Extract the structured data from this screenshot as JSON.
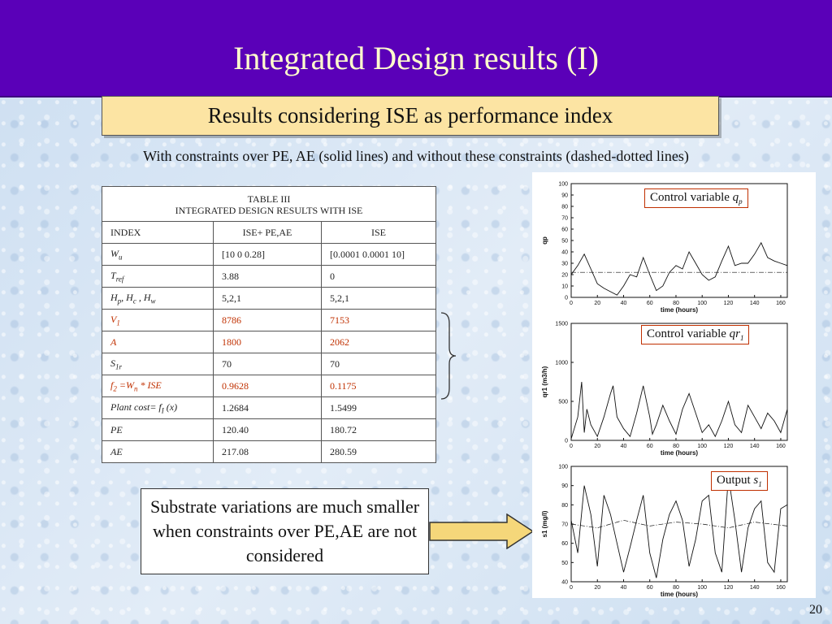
{
  "title": "Integrated Design results (I)",
  "subtitle": "Results considering ISE as performance index",
  "description": "With constraints over PE, AE (solid lines) and without these constraints (dashed-dotted lines)",
  "table": {
    "caption_line1": "TABLE III",
    "caption_line2": "INTEGRATED DESIGN RESULTS WITH ISE",
    "headers": [
      "INDEX",
      "ISE+ PE,AE",
      "ISE"
    ],
    "rows": [
      {
        "index_main": "W",
        "index_sub": "u",
        "index_rest": "",
        "c1": "[10  0  0.28]",
        "c2": "[0.0001  0.0001 10]"
      },
      {
        "index_main": "T",
        "index_sub": "ref",
        "index_rest": "",
        "c1": "3.88",
        "c2": "0"
      },
      {
        "index_main": "H",
        "index_sub": "p",
        "index_rest": ", H",
        "index_sub2": "c",
        "index_rest2": " , H",
        "index_sub3": "w",
        "c1": "5,2,1",
        "c2": "5,2,1"
      },
      {
        "index_main": "V",
        "index_sub": "1",
        "index_rest": "",
        "c1": "8786",
        "c2": "7153"
      },
      {
        "index_main": "A",
        "index_sub": "",
        "index_rest": "",
        "c1": "1800",
        "c2": "2062"
      },
      {
        "index_main": "S",
        "index_sub": "1r",
        "index_rest": "",
        "c1": "70",
        "c2": "70"
      },
      {
        "index_main": "f",
        "index_sub": "2",
        "index_rest": " =W",
        "index_sub2": "n",
        "index_rest2": " * ISE",
        "c1": "0.9628",
        "c2": "0.1175"
      },
      {
        "index_main": "Plant cost= f",
        "index_sub": "I",
        "index_rest": " (x)",
        "c1": "1.2684",
        "c2": "1.5499"
      },
      {
        "index_main": "PE",
        "index_sub": "",
        "index_rest": "",
        "c1": "120.40",
        "c2": "180.72"
      },
      {
        "index_main": "AE",
        "index_sub": "",
        "index_rest": "",
        "c1": "217.08",
        "c2": "280.59"
      }
    ]
  },
  "note": "Substrate variations are much smaller when constraints over PE,AE are not considered",
  "plots": {
    "qp": {
      "label": "Control variable ",
      "label_var": "q",
      "label_sub": "p",
      "ylabel": "qp",
      "xlabel": "time (hours)",
      "yticks": [
        "0",
        "10",
        "20",
        "30",
        "40",
        "50",
        "60",
        "70",
        "80",
        "90",
        "100"
      ]
    },
    "qr1": {
      "label": "Control variable ",
      "label_var": "qr",
      "label_sub": "1",
      "ylabel": "qr1 (m3/h)",
      "xlabel": "time (hours)",
      "yticks": [
        "0",
        "500",
        "1000",
        "1500"
      ]
    },
    "s1": {
      "label": "Output ",
      "label_var": "s",
      "label_sub": "1",
      "ylabel": "s1 (mg/l)",
      "xlabel": "time (hours)",
      "yticks": [
        "40",
        "50",
        "60",
        "70",
        "80",
        "90",
        "100"
      ]
    },
    "xticks": [
      "0",
      "20",
      "40",
      "60",
      "80",
      "100",
      "120",
      "140",
      "160"
    ]
  },
  "chart_data": [
    {
      "type": "line",
      "ylabel": "qp",
      "xlabel": "time (hours)",
      "ylim": [
        0,
        100
      ],
      "xlim": [
        0,
        165
      ],
      "series": [
        {
          "x": [
            0,
            5,
            10,
            15,
            20,
            25,
            30,
            35,
            40,
            45,
            50,
            55,
            60,
            65,
            70,
            75,
            80,
            85,
            90,
            95,
            100,
            105,
            110,
            115,
            120,
            125,
            130,
            135,
            140,
            145,
            150,
            155,
            160,
            165
          ],
          "values": [
            20,
            28,
            38,
            25,
            12,
            8,
            5,
            2,
            10,
            20,
            18,
            35,
            20,
            6,
            10,
            22,
            28,
            25,
            40,
            30,
            20,
            15,
            18,
            32,
            45,
            28,
            30,
            30,
            38,
            48,
            35,
            32,
            30,
            28
          ]
        },
        {
          "x": [
            0,
            165
          ],
          "values": [
            22,
            22
          ]
        }
      ]
    },
    {
      "type": "line",
      "ylabel": "qr1 (m3/h)",
      "xlabel": "time (hours)",
      "ylim": [
        0,
        1500
      ],
      "xlim": [
        0,
        165
      ],
      "series": [
        {
          "x": [
            0,
            5,
            8,
            10,
            12,
            15,
            20,
            25,
            30,
            32,
            35,
            40,
            45,
            50,
            55,
            60,
            62,
            65,
            70,
            75,
            80,
            85,
            90,
            95,
            100,
            105,
            110,
            115,
            120,
            125,
            130,
            135,
            140,
            145,
            150,
            155,
            160,
            165
          ],
          "values": [
            20,
            300,
            750,
            100,
            400,
            200,
            50,
            300,
            600,
            700,
            300,
            150,
            50,
            350,
            700,
            300,
            80,
            200,
            450,
            250,
            80,
            400,
            600,
            350,
            100,
            200,
            50,
            250,
            500,
            200,
            100,
            450,
            300,
            150,
            350,
            250,
            100,
            400
          ]
        },
        {
          "x": [
            0,
            165
          ],
          "values": [
            0,
            0
          ]
        }
      ]
    },
    {
      "type": "line",
      "ylabel": "s1 (mg/l)",
      "xlabel": "time (hours)",
      "ylim": [
        40,
        100
      ],
      "xlim": [
        0,
        165
      ],
      "series": [
        {
          "x": [
            0,
            5,
            10,
            15,
            20,
            25,
            30,
            35,
            40,
            45,
            50,
            55,
            60,
            65,
            70,
            75,
            80,
            85,
            90,
            95,
            100,
            105,
            110,
            115,
            120,
            125,
            130,
            135,
            140,
            145,
            150,
            155,
            160,
            165
          ],
          "values": [
            72,
            55,
            90,
            75,
            48,
            85,
            75,
            60,
            45,
            58,
            72,
            85,
            55,
            42,
            62,
            75,
            82,
            72,
            48,
            62,
            82,
            85,
            55,
            45,
            95,
            72,
            45,
            68,
            78,
            82,
            50,
            45,
            78,
            80
          ]
        },
        {
          "x": [
            0,
            20,
            40,
            60,
            80,
            100,
            120,
            140,
            165
          ],
          "values": [
            70,
            68,
            72,
            69,
            71,
            70,
            68,
            71,
            69
          ]
        }
      ]
    }
  ],
  "page_number": "20"
}
